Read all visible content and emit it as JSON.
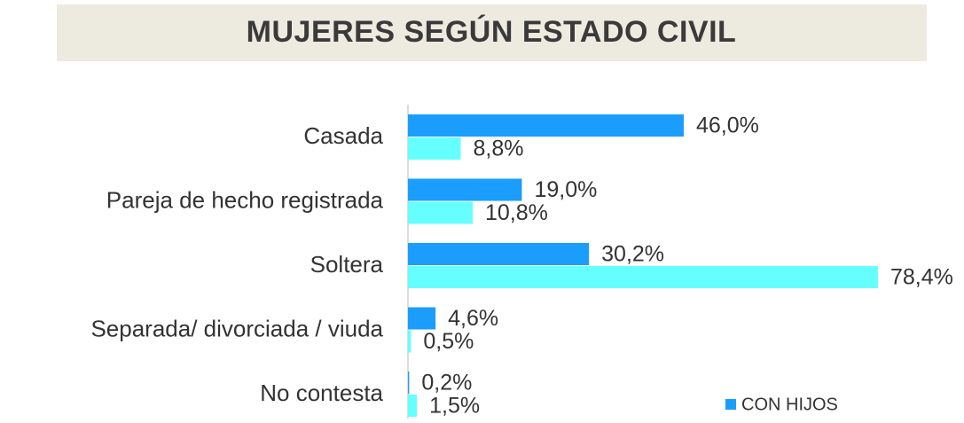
{
  "chart_data": {
    "type": "bar",
    "orientation": "horizontal",
    "title": "MUJERES SEGÚN ESTADO CIVIL",
    "categories": [
      "Casada",
      "Pareja de hecho registrada",
      "Soltera",
      "Separada/ divorciada / viuda",
      "No contesta"
    ],
    "series": [
      {
        "name": "CON HIJOS",
        "color": "#1a9dfd",
        "values": [
          46.0,
          19.0,
          30.2,
          4.6,
          0.2
        ],
        "value_labels": [
          "46,0%",
          "19,0%",
          "30,2%",
          "4,6%",
          "0,2%"
        ]
      },
      {
        "color": "#66ffff",
        "values": [
          8.8,
          10.8,
          78.4,
          0.5,
          1.5
        ],
        "value_labels": [
          "8,8%",
          "10,8%",
          "78,4%",
          "0,5%",
          "1,5%"
        ]
      }
    ],
    "legend": "bottom-right"
  }
}
